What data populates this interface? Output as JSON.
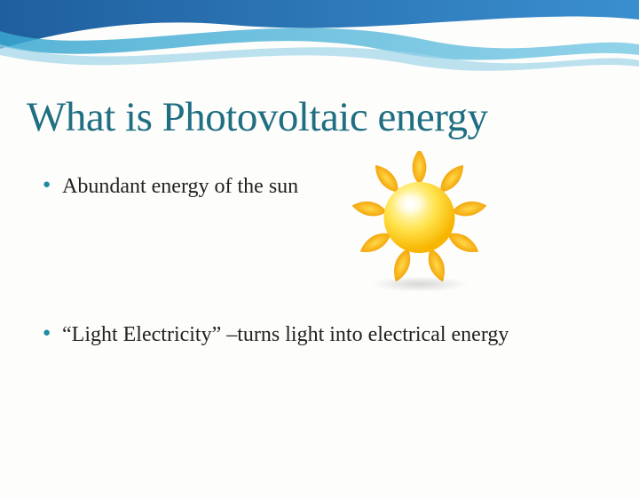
{
  "title": {
    "text": "What is Photovoltaic energy",
    "color": "#1f6e82",
    "fontsize": 47
  },
  "bullets": {
    "items": [
      {
        "text": "Abundant energy of the sun"
      },
      {
        "text": "“Light Electricity” –turns light into electrical energy"
      }
    ],
    "bullet_color": "#1f8ba3",
    "text_color": "#222222",
    "fontsize": 24
  },
  "wave": {
    "upper_color": "#1f5f9e",
    "lower_color": "#3aa7d0",
    "highlight_color": "#9fd4e8"
  },
  "sun": {
    "core_gradient_inner": "#fff9c4",
    "core_gradient_mid": "#ffe24a",
    "core_gradient_outer": "#f7b500",
    "ray_gradient_inner": "#ffd94a",
    "ray_gradient_outer": "#f29e00",
    "shadow_color": "rgba(0,0,0,0.15)"
  },
  "background_color": "#fdfdfb"
}
